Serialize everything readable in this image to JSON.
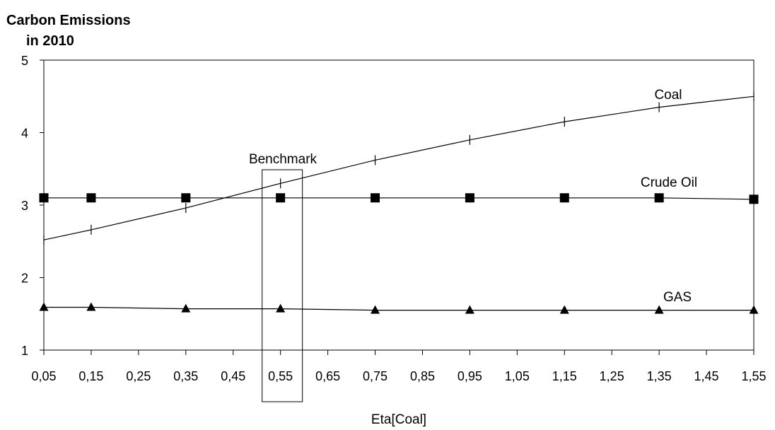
{
  "chart_data": {
    "type": "line",
    "title": "Carbon Emissions in 2010",
    "title_lines": [
      "Carbon Emissions",
      "in 2010"
    ],
    "xlabel": "Eta[Coal]",
    "ylabel": "",
    "x_ticks": [
      "0,05",
      "0,15",
      "0,25",
      "0,35",
      "0,45",
      "0,55",
      "0,65",
      "0,75",
      "0,85",
      "0,95",
      "1,05",
      "1,15",
      "1,25",
      "1,35",
      "1,45",
      "1,55"
    ],
    "y_ticks": [
      "1",
      "2",
      "3",
      "4",
      "5"
    ],
    "ylim": [
      1,
      5
    ],
    "xlim": [
      0.05,
      1.55
    ],
    "grid": false,
    "series": [
      {
        "name": "Coal",
        "marker": "dash",
        "color": "#000000",
        "x": [
          0.05,
          0.15,
          0.35,
          0.55,
          0.75,
          0.95,
          1.15,
          1.35,
          1.55
        ],
        "values": [
          2.52,
          2.66,
          2.96,
          3.3,
          3.62,
          3.9,
          4.15,
          4.35,
          4.5
        ]
      },
      {
        "name": "Crude Oil",
        "marker": "square",
        "color": "#000000",
        "x": [
          0.05,
          0.15,
          0.35,
          0.55,
          0.75,
          0.95,
          1.15,
          1.35,
          1.55
        ],
        "values": [
          3.1,
          3.1,
          3.1,
          3.1,
          3.1,
          3.1,
          3.1,
          3.1,
          3.08
        ]
      },
      {
        "name": "GAS",
        "marker": "triangle",
        "color": "#000000",
        "x": [
          0.05,
          0.15,
          0.35,
          0.55,
          0.75,
          0.95,
          1.15,
          1.35,
          1.55
        ],
        "values": [
          1.59,
          1.59,
          1.57,
          1.57,
          1.55,
          1.55,
          1.55,
          1.55,
          1.55
        ]
      }
    ],
    "annotations": [
      {
        "text": "Benchmark",
        "x": 0.55
      }
    ]
  }
}
